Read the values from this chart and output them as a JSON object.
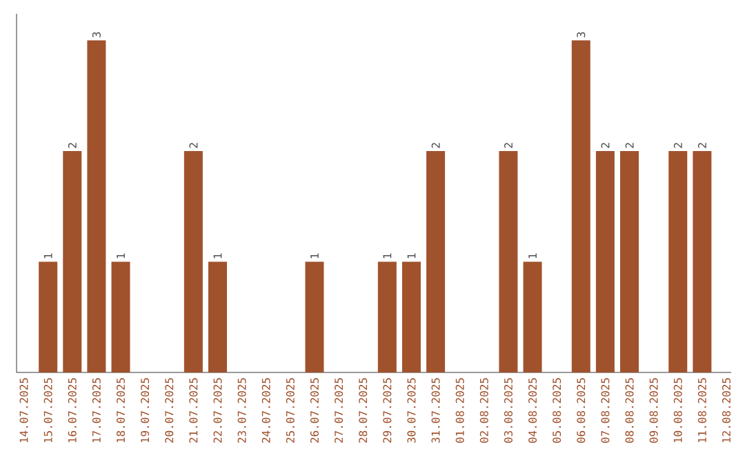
{
  "chart_data": {
    "type": "bar",
    "categories": [
      "14.07.2025",
      "15.07.2025",
      "16.07.2025",
      "17.07.2025",
      "18.07.2025",
      "19.07.2025",
      "20.07.2025",
      "21.07.2025",
      "22.07.2025",
      "23.07.2025",
      "24.07.2025",
      "25.07.2025",
      "26.07.2025",
      "27.07.2025",
      "28.07.2025",
      "29.07.2025",
      "30.07.2025",
      "31.07.2025",
      "01.08.2025",
      "02.08.2025",
      "03.08.2025",
      "04.08.2025",
      "05.08.2025",
      "06.08.2025",
      "07.08.2025",
      "08.08.2025",
      "09.08.2025",
      "10.08.2025",
      "11.08.2025",
      "12.08.2025"
    ],
    "values": [
      0,
      1,
      2,
      3,
      1,
      0,
      0,
      2,
      1,
      0,
      0,
      0,
      1,
      0,
      0,
      1,
      1,
      2,
      0,
      0,
      2,
      1,
      0,
      3,
      2,
      2,
      0,
      2,
      2,
      0
    ],
    "value_labels": [
      null,
      "1",
      "2",
      "3",
      "1",
      null,
      null,
      "2",
      "1",
      null,
      null,
      null,
      "1",
      null,
      null,
      "1",
      "1",
      "2",
      null,
      null,
      "2",
      "1",
      null,
      "3",
      "2",
      "2",
      null,
      "2",
      "2",
      null
    ],
    "color": "#a0522d",
    "grid": false,
    "tick_labels": "x"
  }
}
